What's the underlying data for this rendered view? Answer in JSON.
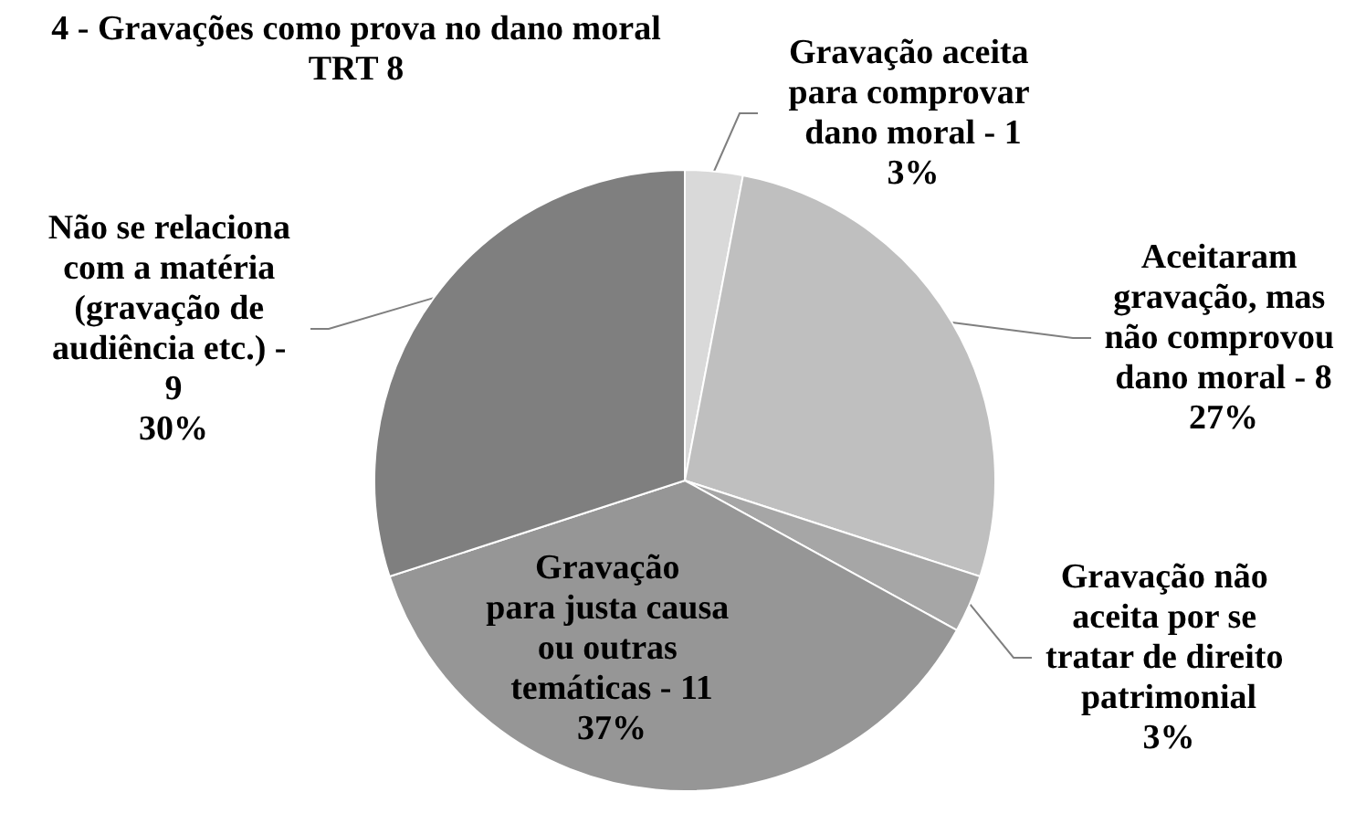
{
  "chart_data": {
    "type": "pie",
    "title": "4 - Gravações como prova no dano moral\nTRT 8",
    "categories": [
      "Gravação aceita para comprovar dano moral - 1",
      "Aceitaram gravação, mas não comprovou dano moral - 8",
      "Gravação não aceita por se tratar de direito patrimonial",
      "Gravação para justa causa ou outras temáticas - 11",
      "Não se relaciona com a matéria (gravação de audiência etc.) - 9"
    ],
    "values": [
      3,
      27,
      3,
      37,
      30
    ],
    "value_labels": [
      "3%",
      "27%",
      "3%",
      "37%",
      "30%"
    ],
    "colors": [
      "#d9d9d9",
      "#bfbfbf",
      "#a6a6a6",
      "#969696",
      "#7f7f7f"
    ],
    "legend": false
  }
}
